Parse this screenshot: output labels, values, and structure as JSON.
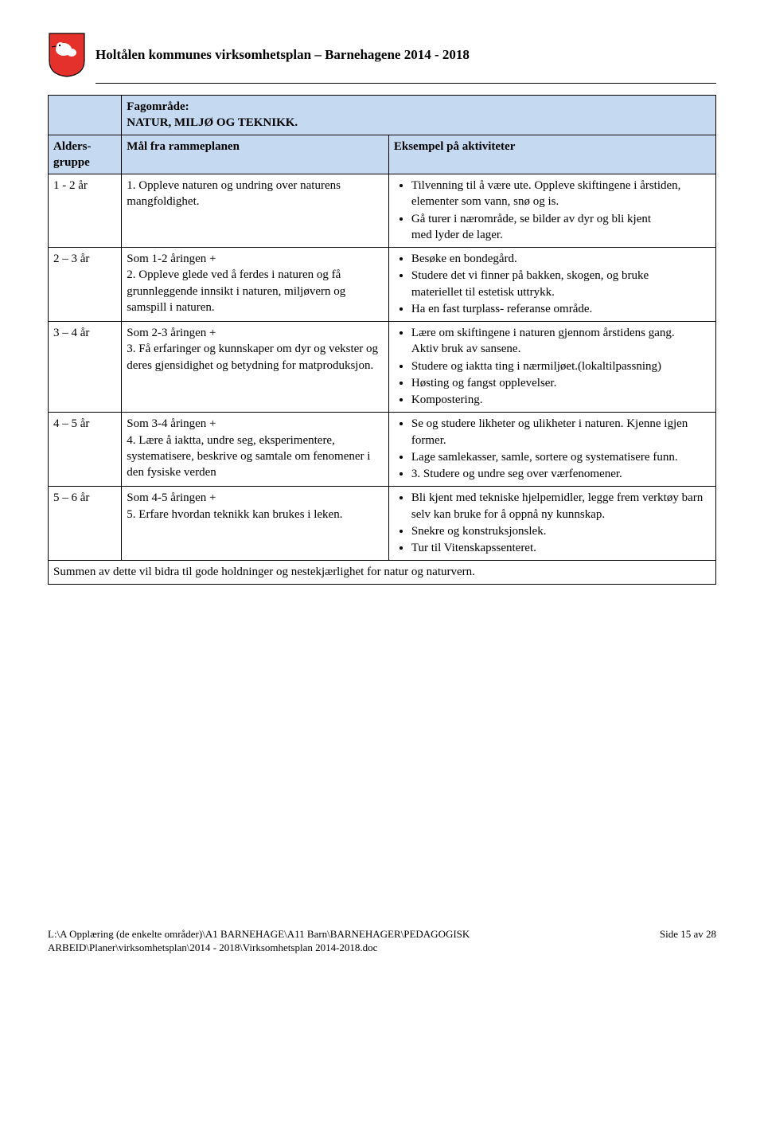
{
  "header": {
    "title": "Holtålen kommunes virksomhetsplan – Barnehagene 2014 - 2018"
  },
  "table": {
    "subject_label": "Fagområde:",
    "subject_value": "NATUR, MILJØ OG TEKNIKK.",
    "col_age": "Alders-gruppe",
    "col_goal": "Mål fra rammeplanen",
    "col_example": "Eksempel på aktiviteter",
    "header_bg": "#c5d9f1",
    "rows": [
      {
        "age": "1 - 2 år",
        "goal": "1. Oppleve naturen og undring over naturens mangfoldighet.",
        "bullets": [
          "Tilvenning til å være ute. Oppleve skiftingene i årstiden, elementer som vann, snø og is.",
          "Gå turer i nærområde, se bilder av dyr og bli kjent\nmed lyder de lager."
        ]
      },
      {
        "age": "2 – 3 år",
        "goal": "Som 1-2 åringen +\n2. Oppleve glede ved å ferdes i naturen og få grunnleggende innsikt i naturen, miljøvern og samspill i naturen.",
        "bullets": [
          "Besøke en bondegård.",
          "Studere det vi finner på bakken, skogen, og bruke\nmateriellet til estetisk uttrykk.",
          "Ha en fast turplass- referanse område."
        ]
      },
      {
        "age": "3 – 4 år",
        "goal": "Som 2-3 åringen +\n3. Få erfaringer og kunnskaper om dyr og vekster og deres gjensidighet og betydning for matproduksjon.",
        "bullets": [
          "Lære om skiftingene i naturen gjennom årstidens gang.\nAktiv bruk av sansene.",
          "Studere og iaktta ting i nærmiljøet.(lokaltilpassning)",
          "Høsting og fangst opplevelser.",
          "Kompostering."
        ]
      },
      {
        "age": "4 – 5 år",
        "goal": "Som 3-4 åringen +\n4. Lære å iaktta, undre seg, eksperimentere, systematisere, beskrive og samtale om fenomener i den fysiske verden",
        "bullets": [
          "Se og studere likheter og ulikheter i naturen. Kjenne igjen former.",
          "Lage samlekasser, samle, sortere og systematisere funn.",
          "3. Studere og undre seg over værfenomener."
        ]
      },
      {
        "age": "5 – 6 år",
        "goal": "Som 4-5 åringen +\n5. Erfare hvordan teknikk kan brukes i leken.",
        "bullets": [
          "Bli kjent med tekniske hjelpemidler, legge frem verktøy barn selv kan bruke for å oppnå ny kunnskap.",
          "Snekre og konstruksjonslek.",
          "Tur til Vitenskapssenteret."
        ]
      }
    ],
    "summary": "Summen av dette vil bidra til gode holdninger og nestekjærlighet for natur og naturvern."
  },
  "footer": {
    "path": "L:\\A Opplæring (de enkelte områder)\\A1 BARNEHAGE\\A11 Barn\\BARNEHAGER\\PEDAGOGISK ARBEID\\Planer\\virksomhetsplan\\2014 - 2018\\Virksomhetsplan 2014-2018.doc",
    "page": "Side 15 av 28"
  }
}
